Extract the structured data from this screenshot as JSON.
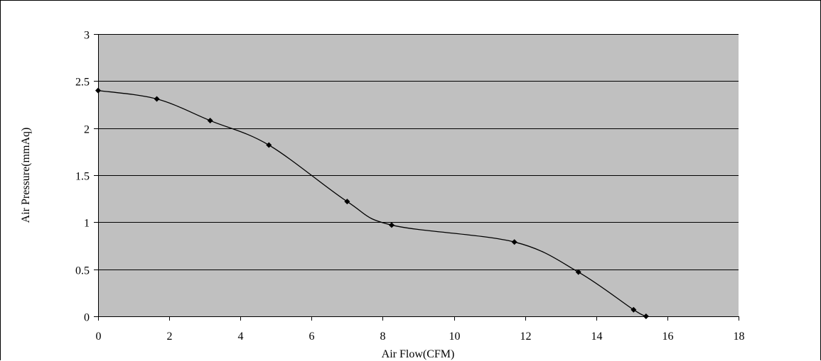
{
  "chart_data": {
    "type": "line",
    "title": "",
    "xlabel": "Air Flow(CFM)",
    "ylabel": "Air Pressure(mmAq)",
    "xlim": [
      0,
      18
    ],
    "ylim": [
      0,
      3
    ],
    "x_ticks": [
      "0",
      "2",
      "4",
      "6",
      "8",
      "10",
      "12",
      "14",
      "16",
      "18"
    ],
    "y_ticks": [
      "0",
      "0.5",
      "1",
      "1.5",
      "2",
      "2.5",
      "3"
    ],
    "grid": "horizontal",
    "legend": "none",
    "plot_background": "#c0c0c0",
    "line_color": "#000000",
    "series": [
      {
        "x": [
          0,
          1.65,
          3.15,
          4.8,
          7.0,
          8.25,
          11.7,
          13.5,
          15.05,
          15.4
        ],
        "y": [
          2.4,
          2.31,
          2.08,
          1.82,
          1.22,
          0.97,
          0.79,
          0.47,
          0.07,
          0.0
        ]
      }
    ]
  }
}
